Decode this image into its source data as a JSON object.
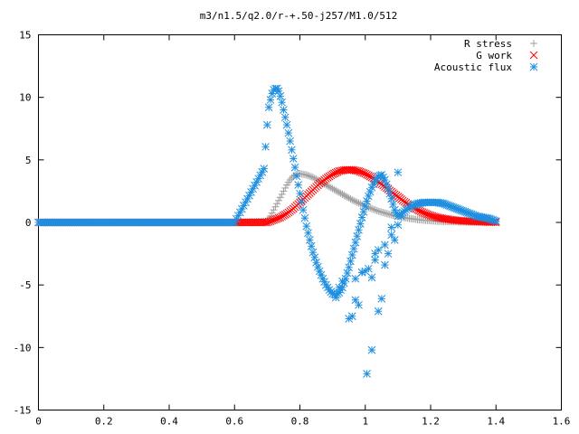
{
  "chart_data": {
    "type": "scatter",
    "title": "m3/n1.5/q2.0/r-+.50-j257/M1.0/512",
    "xlabel": "",
    "ylabel": "",
    "xlim": [
      0,
      1.6
    ],
    "ylim": [
      -15,
      15
    ],
    "x_ticks": [
      "0",
      "0.2",
      "0.4",
      "0.6",
      "0.8",
      "1",
      "1.2",
      "1.4",
      "1.6"
    ],
    "y_ticks": [
      "15",
      "10",
      "5",
      "0",
      "-5",
      "-10",
      "-15"
    ],
    "grid": false,
    "legend_position": "top-right",
    "series": [
      {
        "name": "R stress",
        "marker": "plus",
        "color": "#a0a0a0",
        "x": [
          0.0,
          0.1,
          0.2,
          0.3,
          0.4,
          0.5,
          0.6,
          0.7,
          0.71,
          0.72,
          0.73,
          0.74,
          0.75,
          0.76,
          0.77,
          0.78,
          0.79,
          0.8,
          0.82,
          0.84,
          0.86,
          0.88,
          0.9,
          0.92,
          0.94,
          0.96,
          0.98,
          1.0,
          1.02,
          1.04,
          1.06,
          1.08,
          1.1,
          1.12,
          1.14,
          1.16,
          1.18,
          1.2,
          1.22,
          1.24,
          1.26,
          1.28,
          1.3,
          1.32,
          1.34,
          1.36,
          1.38,
          1.4
        ],
        "y": [
          0,
          0,
          0,
          0,
          0,
          0,
          0,
          0.1,
          0.5,
          1.0,
          1.5,
          2.0,
          2.5,
          3.0,
          3.4,
          3.7,
          3.85,
          3.9,
          3.8,
          3.6,
          3.3,
          3.0,
          2.7,
          2.4,
          2.1,
          1.8,
          1.55,
          1.3,
          1.1,
          0.9,
          0.75,
          0.6,
          0.48,
          0.38,
          0.3,
          0.23,
          0.18,
          0.14,
          0.1,
          0.08,
          0.06,
          0.05,
          0.04,
          0.03,
          0.02,
          0.02,
          0.01,
          0.01
        ]
      },
      {
        "name": "G work",
        "marker": "cross",
        "color": "#ff0000",
        "x": [
          0.0,
          0.1,
          0.2,
          0.3,
          0.4,
          0.5,
          0.6,
          0.7,
          0.72,
          0.74,
          0.76,
          0.78,
          0.8,
          0.82,
          0.84,
          0.86,
          0.88,
          0.9,
          0.92,
          0.94,
          0.96,
          0.98,
          1.0,
          1.02,
          1.04,
          1.06,
          1.08,
          1.1,
          1.12,
          1.14,
          1.16,
          1.18,
          1.2,
          1.22,
          1.24,
          1.26,
          1.28,
          1.3,
          1.32,
          1.34,
          1.36,
          1.38,
          1.4
        ],
        "y": [
          0,
          0,
          0,
          0,
          0,
          0,
          0,
          0.0,
          0.2,
          0.4,
          0.7,
          1.1,
          1.6,
          2.1,
          2.6,
          3.1,
          3.5,
          3.85,
          4.1,
          4.2,
          4.2,
          4.1,
          3.9,
          3.6,
          3.25,
          2.85,
          2.45,
          2.05,
          1.65,
          1.3,
          1.0,
          0.75,
          0.55,
          0.4,
          0.3,
          0.22,
          0.16,
          0.12,
          0.09,
          0.07,
          0.05,
          0.03,
          0.02
        ]
      },
      {
        "name": "Acoustic flux",
        "marker": "star",
        "color": "#1f8fe0",
        "x": [
          0.0,
          0.1,
          0.2,
          0.3,
          0.4,
          0.5,
          0.6,
          0.69,
          0.7,
          0.705,
          0.71,
          0.715,
          0.72,
          0.725,
          0.73,
          0.735,
          0.74,
          0.745,
          0.75,
          0.76,
          0.77,
          0.78,
          0.79,
          0.8,
          0.81,
          0.82,
          0.83,
          0.84,
          0.85,
          0.86,
          0.87,
          0.88,
          0.89,
          0.9,
          0.91,
          0.92,
          0.93,
          0.94,
          0.95,
          0.96,
          0.97,
          0.98,
          0.99,
          1.0,
          1.01,
          1.02,
          1.03,
          1.04,
          1.05,
          1.06,
          1.07,
          1.08,
          1.09,
          1.1,
          1.12,
          1.14,
          1.16,
          1.18,
          1.2,
          1.22,
          1.24,
          1.26,
          1.28,
          1.3,
          1.32,
          1.34,
          1.36,
          1.38,
          1.4,
          0.91,
          0.92,
          0.95,
          0.96,
          0.97,
          0.98,
          0.99,
          1.005,
          1.01,
          1.02,
          1.03,
          1.04,
          1.05,
          1.06,
          1.07,
          1.08,
          1.09,
          1.1,
          1.11,
          0.93,
          0.97,
          0.99,
          1.0,
          1.02,
          1.03,
          1.04,
          1.06,
          1.08,
          1.1
        ],
        "y": [
          0,
          0,
          0,
          0,
          0,
          0,
          0,
          4.3,
          7.8,
          9.2,
          9.8,
          10.3,
          10.6,
          10.7,
          10.7,
          10.5,
          10.1,
          9.6,
          9.0,
          7.8,
          6.5,
          5.1,
          3.7,
          2.3,
          1.0,
          -0.3,
          -1.4,
          -2.4,
          -3.2,
          -3.9,
          -4.5,
          -5.0,
          -5.4,
          -5.7,
          -5.8,
          -5.6,
          -5.2,
          -4.5,
          -3.6,
          -2.6,
          -1.6,
          -0.6,
          0.4,
          1.3,
          2.1,
          2.8,
          3.3,
          3.7,
          3.8,
          3.4,
          2.7,
          1.9,
          1.0,
          0.5,
          0.9,
          1.3,
          1.5,
          1.6,
          1.6,
          1.6,
          1.5,
          1.3,
          1.1,
          0.9,
          0.7,
          0.5,
          0.4,
          0.3,
          0.1,
          -6.0,
          -5.2,
          -7.7,
          -7.5,
          -6.2,
          -6.6,
          -4.0,
          -12.1,
          -3.7,
          -10.2,
          -2.5,
          -7.1,
          -6.1,
          -3.4,
          -2.5,
          -1.0,
          -1.4,
          -0.2,
          0.5,
          -4.7,
          -4.5,
          -4.0,
          -3.9,
          -4.4,
          -3.0,
          -2.2,
          -1.8,
          -0.4,
          4.0
        ]
      }
    ]
  }
}
